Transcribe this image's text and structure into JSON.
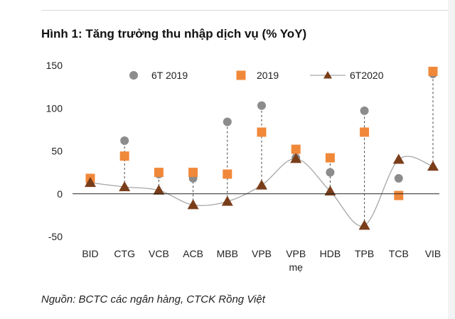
{
  "title": "Hình 1: Tăng trưởng thu nhập dịch vụ (% YoY)",
  "source": "Nguồn: BCTC các ngân hàng, CTCK Rồng Việt",
  "chart_data": {
    "type": "scatter",
    "categories": [
      [
        "BID"
      ],
      [
        "CTG"
      ],
      [
        "VCB"
      ],
      [
        "ACB"
      ],
      [
        "MBB"
      ],
      [
        "VPB"
      ],
      [
        "VPB",
        "mẹ"
      ],
      [
        "HDB"
      ],
      [
        "TPB"
      ],
      [
        "TCB"
      ],
      [
        "VIB"
      ]
    ],
    "ylim": [
      -50,
      150
    ],
    "yticks": [
      -50,
      0,
      50,
      100,
      150
    ],
    "series": [
      {
        "name": "6T 2019",
        "marker": "circle",
        "color": "#8c8c8c",
        "values": [
          14,
          62,
          23,
          18,
          84,
          103,
          42,
          25,
          97,
          18,
          140
        ]
      },
      {
        "name": "2019",
        "marker": "square",
        "color": "#f0883a",
        "values": [
          18,
          44,
          25,
          25,
          23,
          72,
          52,
          42,
          72,
          -2,
          143
        ]
      },
      {
        "name": "6T2020",
        "marker": "triangle",
        "line": "smooth",
        "color": "#7a3d1a",
        "line_color": "#a6a6a6",
        "values": [
          13,
          8,
          4,
          -13,
          -9,
          10,
          41,
          3,
          -37,
          40,
          32
        ]
      }
    ],
    "drop_lines": "dashed vertical line from 6T2020 marker to max of other series",
    "legend": "top"
  }
}
